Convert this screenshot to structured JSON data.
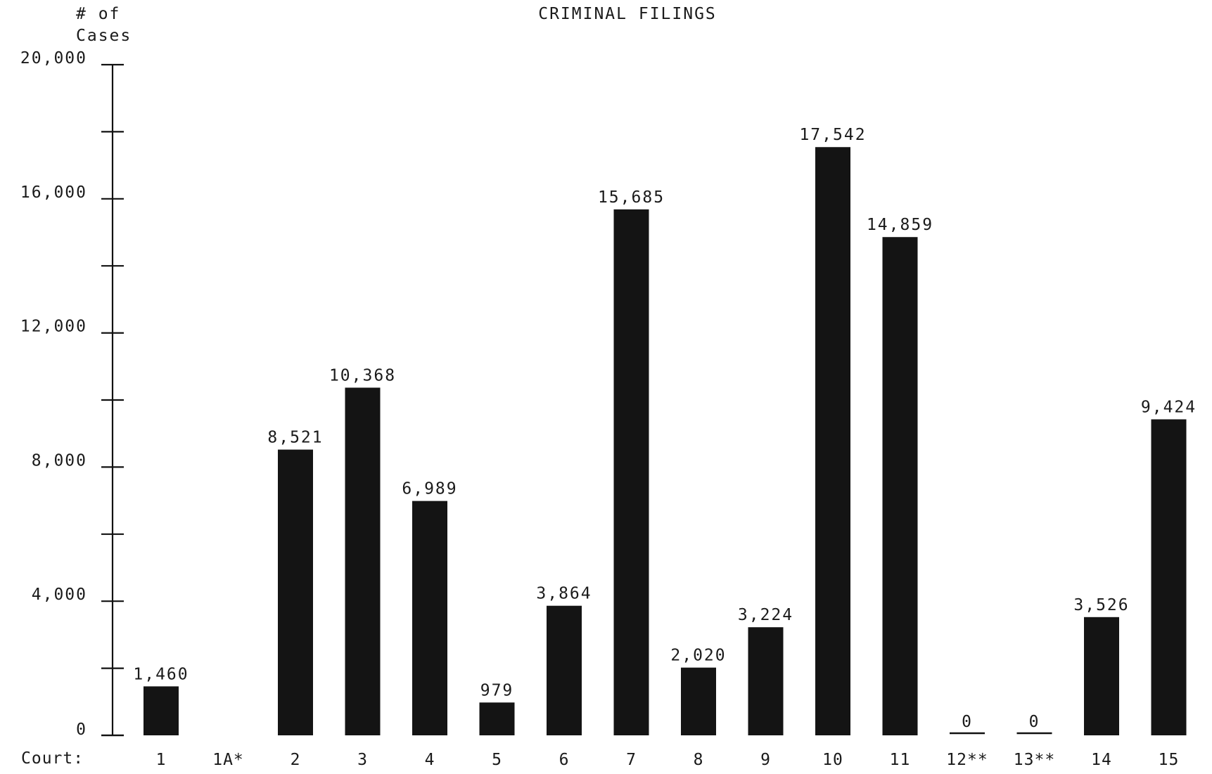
{
  "chart_data": {
    "type": "bar",
    "title": "CRIMINAL FILINGS",
    "ylabel": "# of Cases",
    "ylabel_lines": [
      "# of",
      "Cases"
    ],
    "xlabel": "Court:",
    "ylim": [
      0,
      20000
    ],
    "y_ticks": [
      0,
      4000,
      8000,
      12000,
      16000,
      20000
    ],
    "y_tick_labels": [
      "0",
      "4,000",
      "8,000",
      "12,000",
      "16,000",
      "20,000"
    ],
    "y_minor_ticks": [
      2000,
      6000,
      10000,
      14000,
      18000
    ],
    "categories": [
      "1",
      "1A*",
      "2",
      "3",
      "4",
      "5",
      "6",
      "7",
      "8",
      "9",
      "10",
      "11",
      "12**",
      "13**",
      "14",
      "15"
    ],
    "values": [
      1460,
      null,
      8521,
      10368,
      6989,
      979,
      3864,
      15685,
      2020,
      3224,
      17542,
      14859,
      0,
      0,
      3526,
      9424
    ],
    "data_labels": [
      "1,460",
      "",
      "8,521",
      "10,368",
      "6,989",
      "979",
      "3,864",
      "15,685",
      "2,020",
      "3,224",
      "17,542",
      "14,859",
      "0",
      "0",
      "3,526",
      "9,424"
    ],
    "grid": false,
    "legend": "none",
    "bar_color": "#141414"
  }
}
